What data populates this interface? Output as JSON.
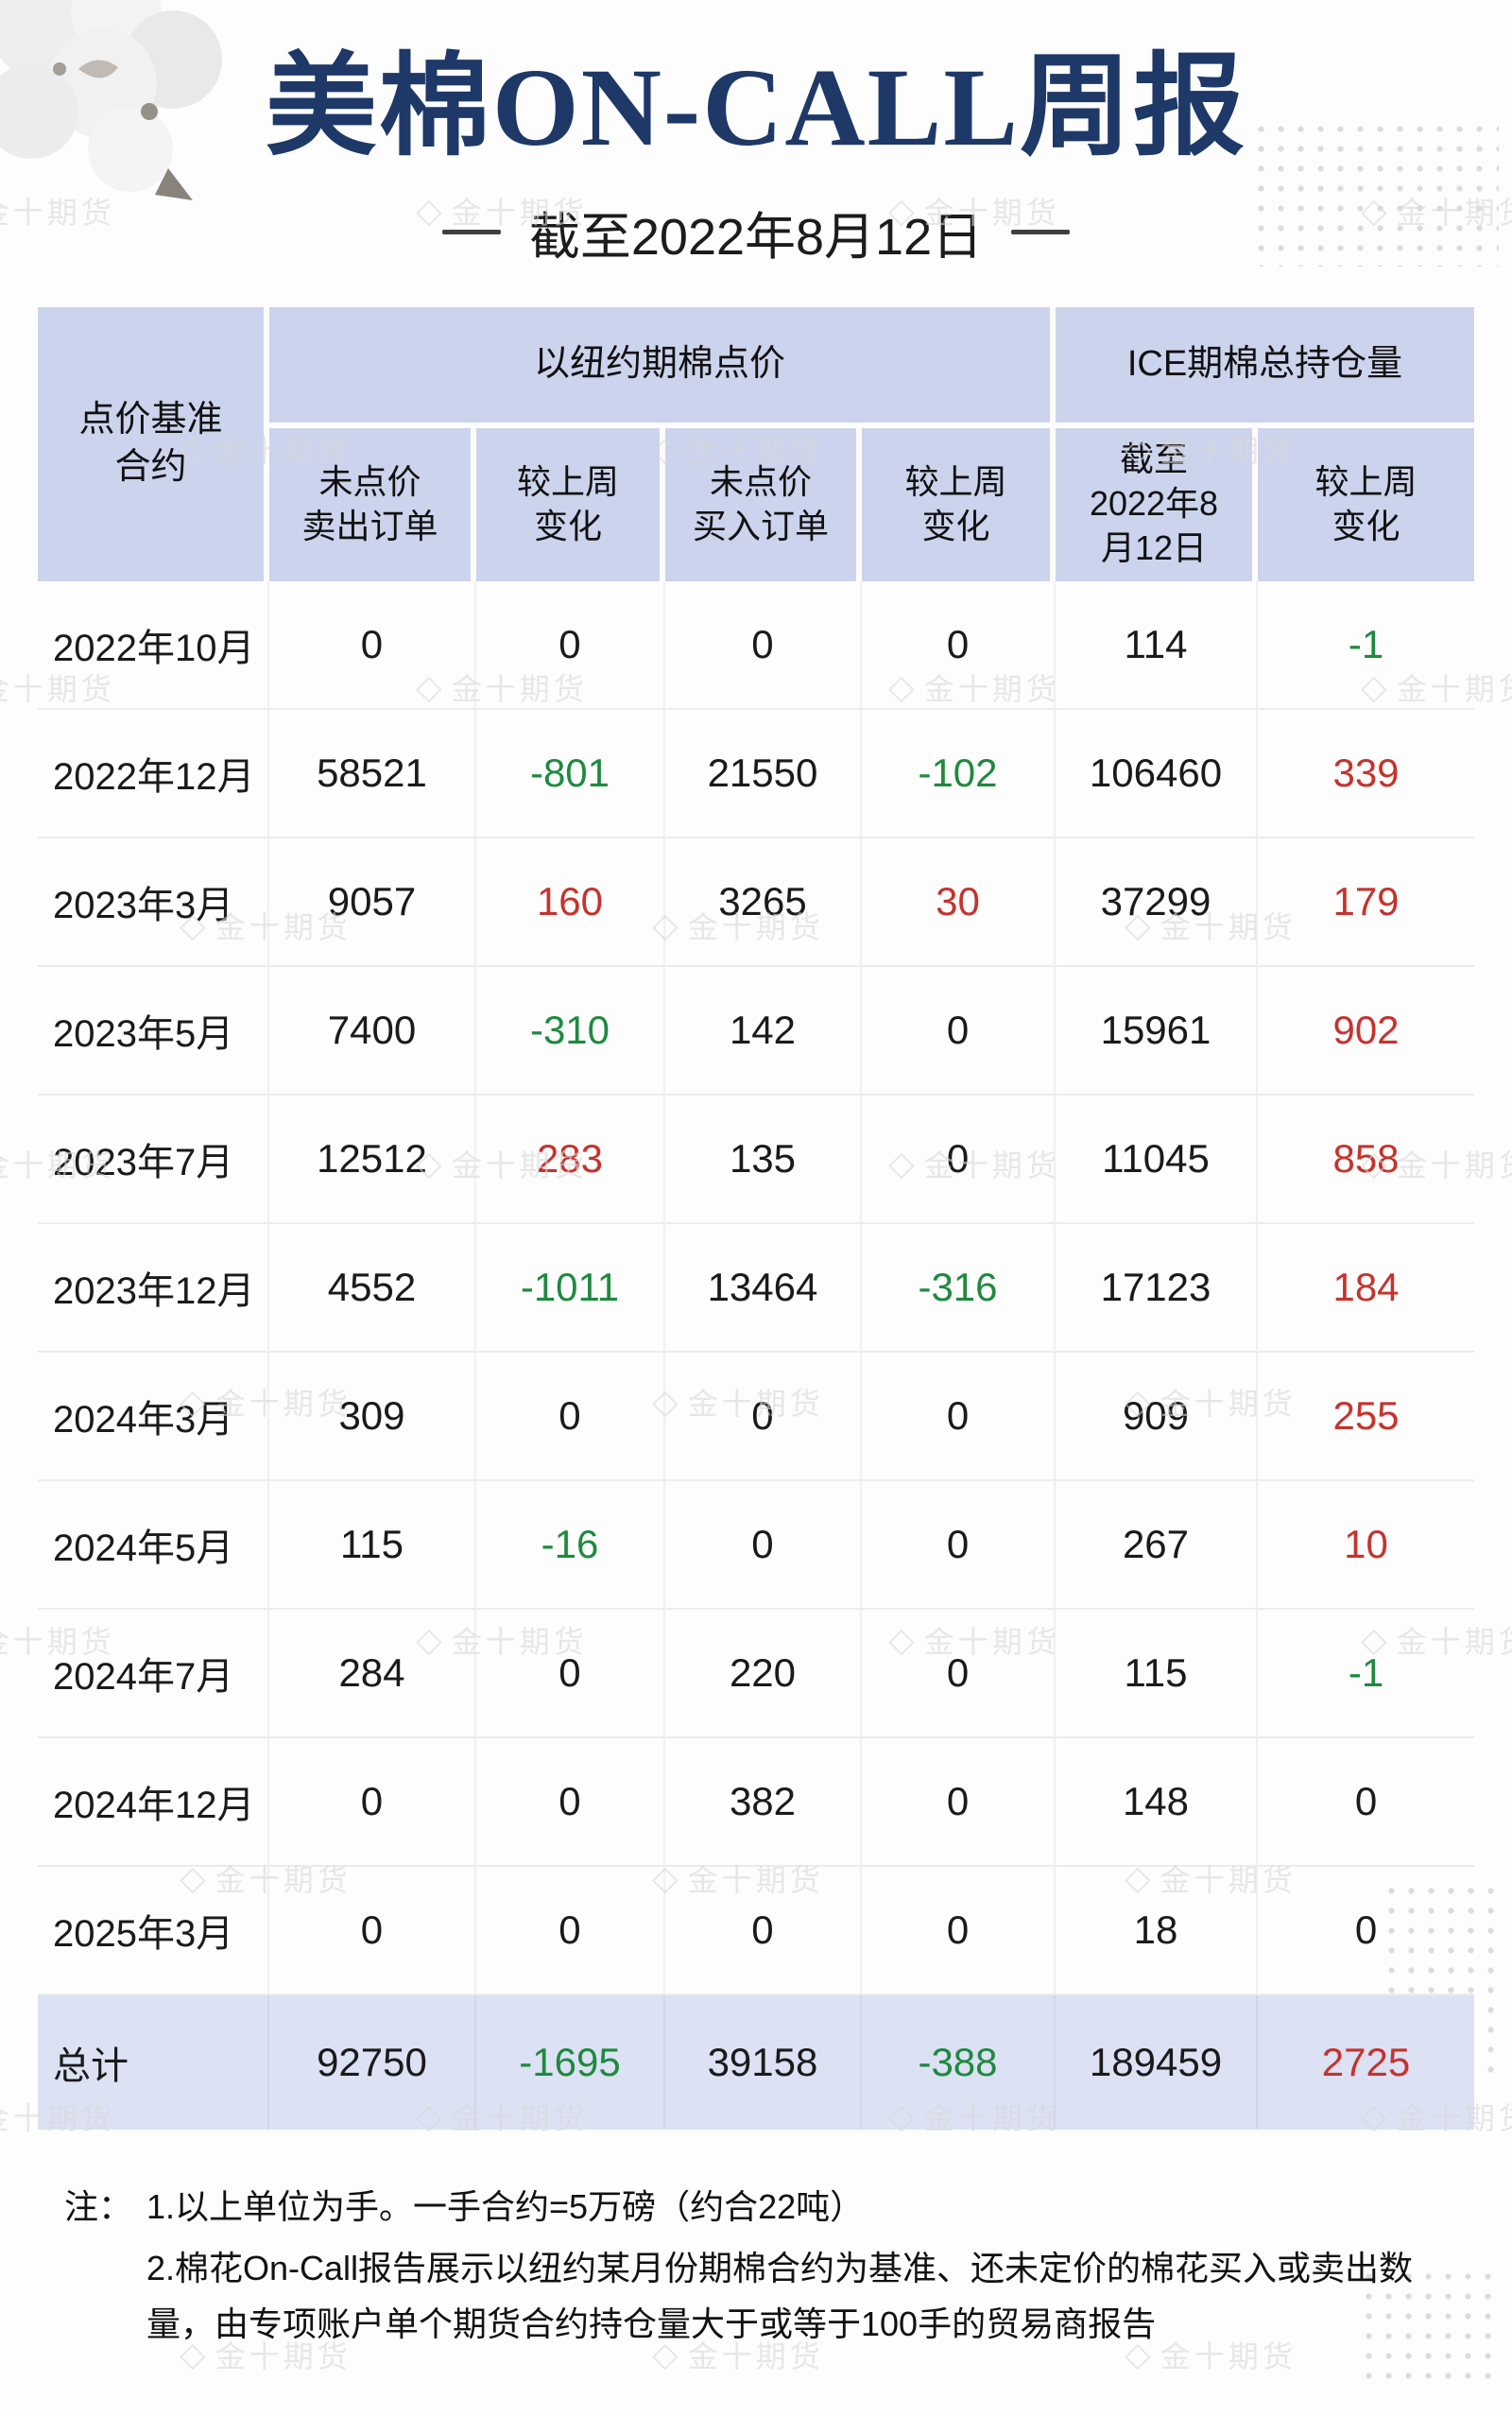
{
  "watermark": {
    "text": "金十期货",
    "icon": "◇"
  },
  "header": {
    "title": "美棉ON-CALL周报",
    "subtitle": "截至2022年8月12日"
  },
  "chart_data": {
    "type": "table",
    "title": "美棉ON-CALL周报",
    "as_of": "截至2022年8月12日",
    "corner_header": "点价基准\n合约",
    "column_groups": [
      {
        "label": "以纽约期棉点价",
        "span": 4
      },
      {
        "label": "ICE期棉总持仓量",
        "span": 2
      }
    ],
    "sub_headers": [
      "未点价\n卖出订单",
      "较上周\n变化",
      "未点价\n买入订单",
      "较上周\n变化",
      "截至\n2022年8\n月12日",
      "较上周\n变化"
    ],
    "columns": [
      "点价基准合约",
      "未点价卖出订单",
      "较上周变化",
      "未点价买入订单",
      "较上周变化",
      "截至2022年8月12日",
      "较上周变化"
    ],
    "rows": [
      [
        "2022年10月",
        "0",
        "0",
        "0",
        "0",
        "114",
        "-1"
      ],
      [
        "2022年12月",
        "58521",
        "-801",
        "21550",
        "-102",
        "106460",
        "339"
      ],
      [
        "2023年3月",
        "9057",
        "160",
        "3265",
        "30",
        "37299",
        "179"
      ],
      [
        "2023年5月",
        "7400",
        "-310",
        "142",
        "0",
        "15961",
        "902"
      ],
      [
        "2023年7月",
        "12512",
        "283",
        "135",
        "0",
        "11045",
        "858"
      ],
      [
        "2023年12月",
        "4552",
        "-1011",
        "13464",
        "-316",
        "17123",
        "184"
      ],
      [
        "2024年3月",
        "309",
        "0",
        "0",
        "0",
        "909",
        "255"
      ],
      [
        "2024年5月",
        "115",
        "-16",
        "0",
        "0",
        "267",
        "10"
      ],
      [
        "2024年7月",
        "284",
        "0",
        "220",
        "0",
        "115",
        "-1"
      ],
      [
        "2024年12月",
        "0",
        "0",
        "382",
        "0",
        "148",
        "0"
      ],
      [
        "2025年3月",
        "0",
        "0",
        "0",
        "0",
        "18",
        "0"
      ]
    ],
    "total_row": [
      "总计",
      "92750",
      "-1695",
      "39158",
      "-388",
      "189459",
      "2725"
    ]
  },
  "notes": {
    "label": "注：",
    "items": [
      "1.以上单位为手。一手合约=5万磅（约合22吨）",
      "2.棉花On-Call报告展示以纽约某月份期棉合约为基准、还未定价的棉花买入或卖出数量，由专项账户单个期货合约持仓量大于或等于100手的贸易商报告"
    ]
  },
  "theme": {
    "title_color": "#1e3868",
    "header_bg": "#ccd3ec",
    "total_row_bg": "#dce1f4",
    "positive": "#c5332d",
    "negative": "#1e8a3e",
    "watermark_color": "#d9d9d9"
  }
}
